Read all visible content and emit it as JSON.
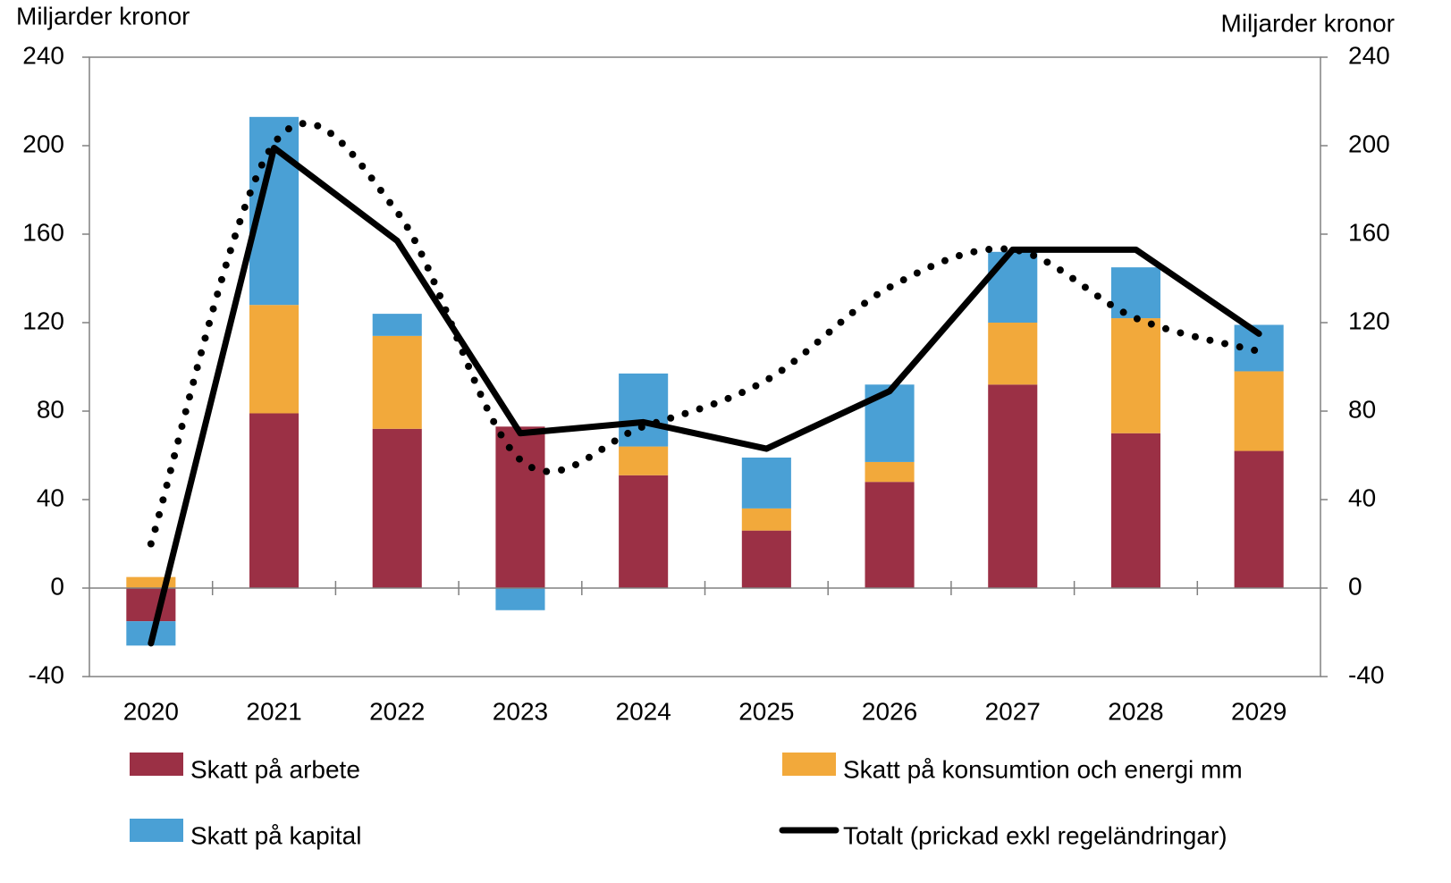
{
  "chart_data": {
    "type": "bar",
    "stacked": true,
    "y_label": "Miljarder kronor",
    "y2_label": "Miljarder kronor",
    "categories": [
      "2020",
      "2021",
      "2022",
      "2023",
      "2024",
      "2025",
      "2026",
      "2027",
      "2028",
      "2029"
    ],
    "ylim": [
      -40,
      240
    ],
    "yticks": [
      -40,
      0,
      40,
      80,
      120,
      160,
      200,
      240
    ],
    "y2lim": [
      -40,
      240
    ],
    "y2ticks": [
      -40,
      0,
      40,
      80,
      120,
      160,
      200,
      240
    ],
    "series": [
      {
        "name": "Skatt på arbete",
        "color": "#9b3045",
        "values": [
          -15,
          79,
          72,
          73,
          51,
          26,
          48,
          92,
          70,
          62
        ]
      },
      {
        "name": "Skatt på konsumtion och energi mm",
        "color": "#f2a93b",
        "values": [
          5,
          49,
          42,
          0,
          13,
          10,
          9,
          28,
          52,
          36
        ]
      },
      {
        "name": "Skatt på kapital",
        "color": "#4aa0d5",
        "values": [
          -11,
          85,
          10,
          -10,
          33,
          23,
          35,
          32,
          23,
          21
        ]
      },
      {
        "name": "Totalt (prickad exkl regeländringar)",
        "type": "line",
        "color": "#000000",
        "values": [
          -25,
          199,
          157,
          70,
          75,
          63,
          89,
          153,
          153,
          115
        ]
      },
      {
        "type": "line",
        "style": "dotted",
        "color": "#000000",
        "values": [
          20,
          201,
          170,
          58,
          73,
          94,
          136,
          153,
          122,
          107
        ]
      }
    ]
  }
}
